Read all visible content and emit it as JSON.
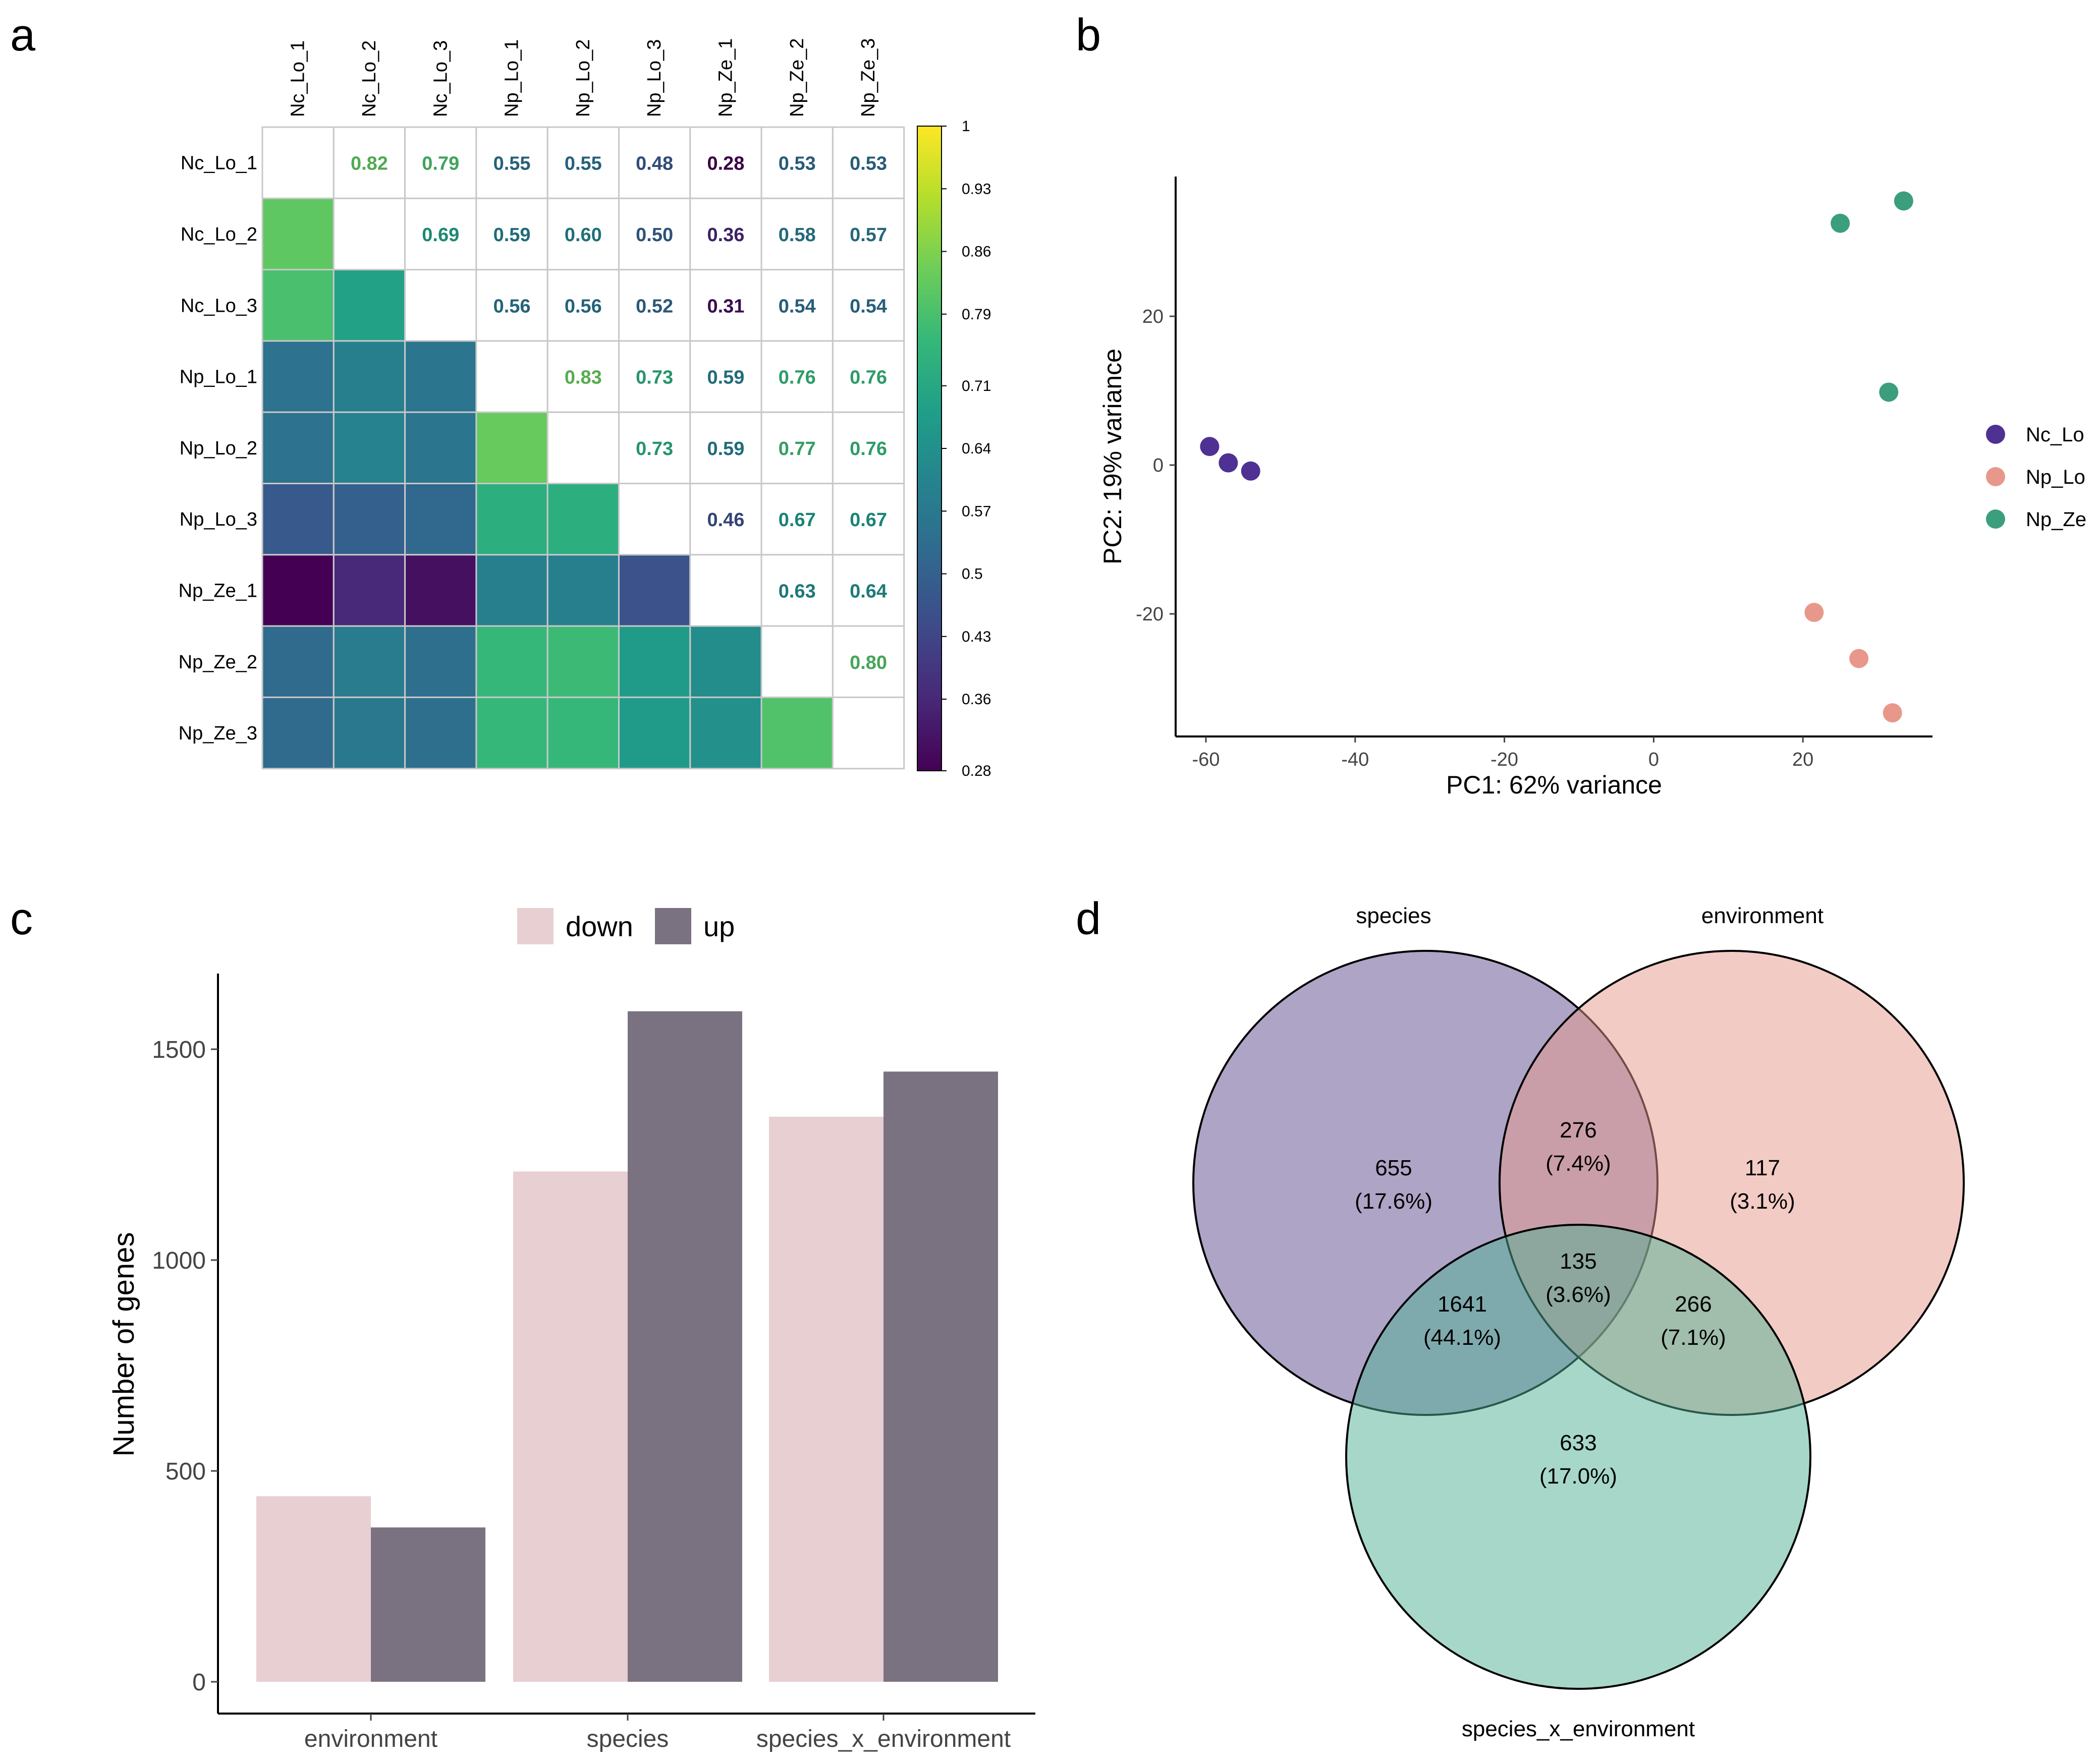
{
  "panels": {
    "a": "a",
    "b": "b",
    "c": "c",
    "d": "d"
  },
  "chart_data": [
    {
      "type": "heatmap",
      "panel": "a",
      "labels": [
        "Nc_Lo_1",
        "Nc_Lo_2",
        "Nc_Lo_3",
        "Np_Lo_1",
        "Np_Lo_2",
        "Np_Lo_3",
        "Np_Ze_1",
        "Np_Ze_2",
        "Np_Ze_3"
      ],
      "values": [
        [
          null,
          0.82,
          0.79,
          0.55,
          0.55,
          0.48,
          0.28,
          0.53,
          0.53
        ],
        [
          0.82,
          null,
          0.69,
          0.59,
          0.6,
          0.5,
          0.36,
          0.58,
          0.57
        ],
        [
          0.79,
          0.69,
          null,
          0.56,
          0.56,
          0.52,
          0.31,
          0.54,
          0.54
        ],
        [
          0.55,
          0.59,
          0.56,
          null,
          0.83,
          0.73,
          0.59,
          0.76,
          0.76
        ],
        [
          0.55,
          0.6,
          0.56,
          0.83,
          null,
          0.73,
          0.59,
          0.77,
          0.76
        ],
        [
          0.48,
          0.5,
          0.52,
          0.73,
          0.73,
          null,
          0.46,
          0.67,
          0.67
        ],
        [
          0.28,
          0.36,
          0.31,
          0.59,
          0.59,
          0.46,
          null,
          0.63,
          0.64
        ],
        [
          0.53,
          0.58,
          0.54,
          0.76,
          0.77,
          0.67,
          0.63,
          null,
          0.8
        ],
        [
          0.53,
          0.57,
          0.54,
          0.76,
          0.76,
          0.67,
          0.64,
          0.8,
          null
        ]
      ],
      "color_range": [
        0.28,
        1
      ],
      "colorbar_ticks": [
        "1",
        "0.93",
        "0.86",
        "0.79",
        "0.71",
        "0.64",
        "0.57",
        "0.5",
        "0.43",
        "0.36",
        "0.28"
      ]
    },
    {
      "type": "scatter",
      "panel": "b",
      "xlabel": "PC1: 62% variance",
      "ylabel": "PC2: 19% variance",
      "xlim": [
        -62,
        38
      ],
      "ylim": [
        -37,
        39
      ],
      "xticks": [
        -60,
        -40,
        -20,
        0,
        20
      ],
      "yticks": [
        20,
        0,
        -20
      ],
      "series": [
        {
          "name": "Nc_Lo",
          "color": "#4E3192",
          "points": [
            [
              -59.5,
              2.5
            ],
            [
              -57,
              0.3
            ],
            [
              -54,
              -0.8
            ]
          ]
        },
        {
          "name": "Np_Lo",
          "color": "#E8988A",
          "points": [
            [
              21.5,
              -19.8
            ],
            [
              27.5,
              -26
            ],
            [
              32,
              -33.3
            ]
          ]
        },
        {
          "name": "Np_Ze",
          "color": "#3B9E7D",
          "points": [
            [
              25,
              32.5
            ],
            [
              33.5,
              35.5
            ],
            [
              31.5,
              9.8
            ]
          ]
        }
      ]
    },
    {
      "type": "bar",
      "panel": "c",
      "categories": [
        "environment",
        "species",
        "species_x_environment"
      ],
      "series": [
        {
          "name": "down",
          "color": "#E7CFD2",
          "values": [
            440,
            1210,
            1340
          ]
        },
        {
          "name": "up",
          "color": "#7B7281",
          "values": [
            366,
            1590,
            1447
          ]
        }
      ],
      "ylabel": "Number of genes",
      "ylim": [
        0,
        1670
      ],
      "yticks": [
        0,
        500,
        1000,
        1500
      ]
    },
    {
      "type": "venn",
      "panel": "d",
      "sets": [
        {
          "name": "species",
          "color": "#5E4A8E"
        },
        {
          "name": "environment",
          "color": "#E6978C"
        },
        {
          "name": "species_x_environment",
          "color": "#4FB094"
        }
      ],
      "regions": [
        {
          "id": "species_only",
          "count": "655",
          "pct": "(17.6%)"
        },
        {
          "id": "species_environment",
          "count": "276",
          "pct": "(7.4%)"
        },
        {
          "id": "environment_only",
          "count": "117",
          "pct": "(3.1%)"
        },
        {
          "id": "all_three",
          "count": "135",
          "pct": "(3.6%)"
        },
        {
          "id": "species_sxe",
          "count": "1641",
          "pct": "(44.1%)"
        },
        {
          "id": "environment_sxe",
          "count": "266",
          "pct": "(7.1%)"
        },
        {
          "id": "sxe_only",
          "count": "633",
          "pct": "(17.0%)"
        }
      ]
    }
  ]
}
